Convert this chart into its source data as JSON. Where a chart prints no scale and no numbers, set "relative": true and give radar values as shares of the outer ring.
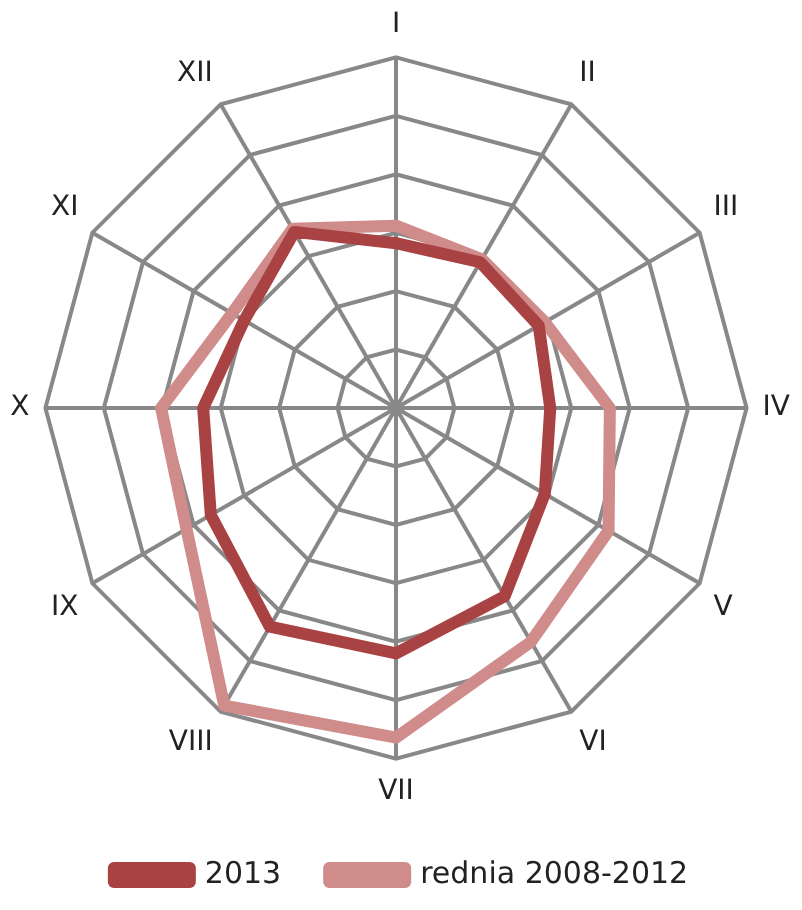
{
  "chart_data": {
    "type": "radar",
    "relative": true,
    "categories": [
      "I",
      "II",
      "III",
      "IV",
      "V",
      "VI",
      "VII",
      "VIII",
      "IX",
      "X",
      "XI",
      "XII"
    ],
    "series": [
      {
        "name": "2013",
        "color": "#a94343",
        "values": [
          0.47,
          0.48,
          0.47,
          0.44,
          0.49,
          0.62,
          0.7,
          0.72,
          0.61,
          0.55,
          0.5,
          0.58
        ]
      },
      {
        "name": "rednia 2008-2012",
        "color": "#d08b8b",
        "values": [
          0.52,
          0.49,
          0.49,
          0.61,
          0.7,
          0.77,
          0.94,
          0.98,
          0.69,
          0.67,
          0.54,
          0.59
        ]
      }
    ],
    "grid": true,
    "legend": "bottom",
    "marker": "none"
  }
}
